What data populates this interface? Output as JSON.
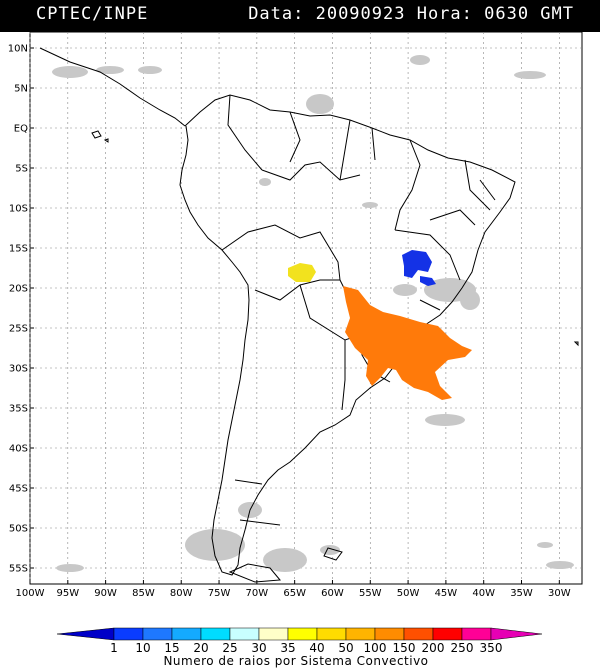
{
  "header": {
    "org": "CPTEC/INPE",
    "datetime": "Data: 20090923 Hora: 0630 GMT"
  },
  "axes": {
    "lat_labels": [
      "10N",
      "5N",
      "EQ",
      "5S",
      "10S",
      "15S",
      "20S",
      "25S",
      "30S",
      "35S",
      "40S",
      "45S",
      "50S",
      "55S"
    ],
    "lat_values": [
      10,
      5,
      0,
      -5,
      -10,
      -15,
      -20,
      -25,
      -30,
      -35,
      -40,
      -45,
      -50,
      -55
    ],
    "lon_labels": [
      "100W",
      "95W",
      "90W",
      "85W",
      "80W",
      "75W",
      "70W",
      "65W",
      "60W",
      "55W",
      "50W",
      "45W",
      "40W",
      "35W",
      "30W"
    ],
    "lon_values": [
      -100,
      -95,
      -90,
      -85,
      -80,
      -75,
      -70,
      -65,
      -60,
      -55,
      -50,
      -45,
      -40,
      -35,
      -30
    ],
    "lon_range": [
      -100,
      -27
    ],
    "lat_range": [
      12,
      -57
    ],
    "grid": true
  },
  "colorbar": {
    "title": "Numero de raios por Sistema Convectivo",
    "labels": [
      "1",
      "10",
      "15",
      "20",
      "25",
      "30",
      "35",
      "40",
      "50",
      "100",
      "150",
      "200",
      "250",
      "350"
    ],
    "colors": [
      "#0000c8",
      "#0a3cff",
      "#1e78ff",
      "#14aaff",
      "#00dcff",
      "#c8ffff",
      "#ffffc8",
      "#ffff00",
      "#ffdc00",
      "#ffb400",
      "#ff8c00",
      "#ff5000",
      "#ff0000",
      "#ff0096",
      "#e600b4"
    ]
  },
  "systems": [
    {
      "name": "Bolivia system",
      "color": "#f2e21e"
    },
    {
      "name": "Minas Gerais system",
      "color": "#1432e6"
    },
    {
      "name": "Parana system",
      "color": "#ff7a0a"
    }
  ],
  "cloud_color": "#c8c8c8"
}
